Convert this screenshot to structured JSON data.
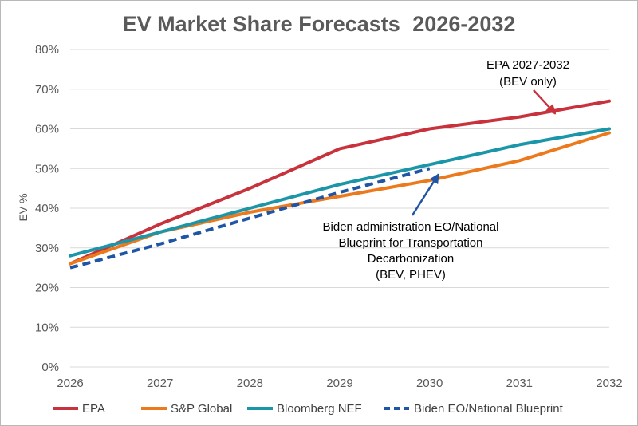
{
  "chart_data": {
    "type": "line",
    "title_main": "EV Market Share Forecasts",
    "title_years": "2026-2032",
    "ylabel": "EV %",
    "xlabel": "",
    "ylim": [
      0,
      80
    ],
    "y_ticks": [
      "0%",
      "10%",
      "20%",
      "30%",
      "40%",
      "50%",
      "60%",
      "70%",
      "80%"
    ],
    "x": [
      2026,
      2027,
      2028,
      2029,
      2030,
      2031,
      2032
    ],
    "x_tick_labels": [
      "2026",
      "2027",
      "2028",
      "2029",
      "2030",
      "2031",
      "2032"
    ],
    "grid": true,
    "legend_position": "bottom",
    "series": [
      {
        "name": "EPA",
        "color": "#c8323c",
        "style": "solid",
        "values": [
          26,
          36,
          45,
          55,
          60,
          63,
          67
        ]
      },
      {
        "name": "S&P Global",
        "color": "#ec7a1c",
        "style": "solid",
        "values": [
          26,
          34,
          39,
          43,
          47,
          52,
          59
        ]
      },
      {
        "name": "Bloomberg NEF",
        "color": "#1b96a8",
        "style": "solid",
        "values": [
          28,
          34,
          40,
          46,
          51,
          56,
          60
        ]
      },
      {
        "name": "Biden EO/National Blueprint",
        "color": "#1f55a6",
        "style": "dashed",
        "values": [
          25,
          31,
          37.5,
          44,
          50,
          null,
          null
        ]
      }
    ],
    "annotations": [
      {
        "lines": [
          "EPA 2027-2032",
          "(BEV only)"
        ],
        "color": "#c8323c",
        "arrow_to_x": 2031.4,
        "arrow_to_y": 63.8
      },
      {
        "lines": [
          "Biden administration EO/National",
          "Blueprint for Transportation",
          "Decarbonization",
          "(BEV, PHEV)"
        ],
        "color": "#1f55a6",
        "arrow_to_x": 2030.1,
        "arrow_to_y": 50.2
      }
    ]
  }
}
